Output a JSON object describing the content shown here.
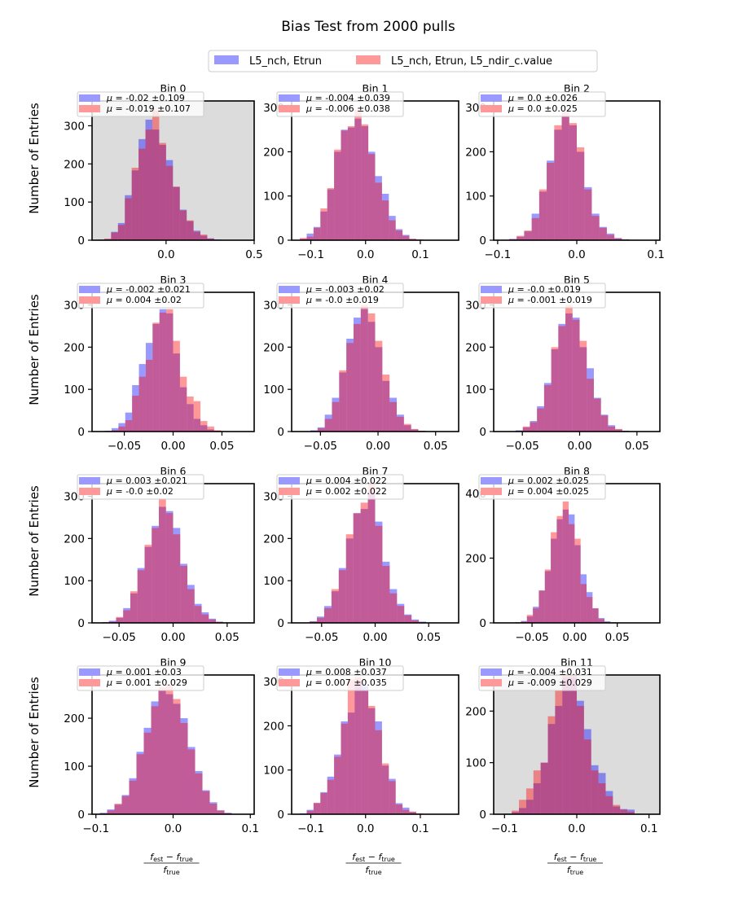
{
  "chart_data": {
    "type": "bar",
    "title": "Bias Test from 2000 pulls",
    "legend": {
      "placement": "top-center",
      "entries": [
        {
          "name": "L5_nch, Etrun",
          "color": "#6666ff"
        },
        {
          "name": "L5_nch, Etrun, L5_ndir_c.value",
          "color": "#ff6666"
        }
      ]
    },
    "ylabel": "Number of Entries",
    "xlabel": "(f_est - f_true) / f_true",
    "xlabel_parts": {
      "num_a": "f",
      "num_a_sub": "est",
      "minus": "−",
      "num_b": "f",
      "num_b_sub": "true",
      "den": "f",
      "den_sub": "true"
    },
    "panels": [
      {
        "title": "Bin 0",
        "shaded": true,
        "xlim": [
          -0.42,
          0.5
        ],
        "ylim": [
          0,
          365
        ],
        "xticks": [
          0.0,
          0.5
        ],
        "xticklabels": [
          "0.0",
          "0.5"
        ],
        "yticks": [
          0,
          100,
          200,
          300
        ],
        "edges": [
          -0.39,
          0.39
        ],
        "series": [
          {
            "name": "L5_nch, Etrun",
            "mu": "-0.02",
            "sigma": "0.109",
            "values": [
              1,
              3,
              22,
              45,
              118,
              183,
              265,
              316,
              290,
              250,
              210,
              140,
              80,
              50,
              25,
              12,
              5,
              2,
              0,
              0
            ]
          },
          {
            "name": "L5_nch, Etrun, L5_ndir_c.value",
            "mu": "-0.019",
            "sigma": "0.107",
            "values": [
              2,
              4,
              20,
              40,
              110,
              190,
              240,
              290,
              340,
              255,
              195,
              140,
              78,
              52,
              22,
              15,
              4,
              1,
              0,
              0
            ]
          }
        ]
      },
      {
        "title": "Bin 1",
        "shaded": false,
        "xlim": [
          -0.135,
          0.17
        ],
        "ylim": [
          0,
          315
        ],
        "xticks": [
          -0.1,
          0.0,
          0.1
        ],
        "xticklabels": [
          "−0.1",
          "0.0",
          "0.1"
        ],
        "yticks": [
          0,
          100,
          200,
          300
        ],
        "edges": [
          -0.12,
          0.13
        ],
        "series": [
          {
            "name": "L5_nch, Etrun",
            "mu": "-0.004",
            "sigma": "0.039",
            "values": [
              3,
              15,
              30,
              65,
              115,
              200,
              250,
              255,
              275,
              258,
              200,
              145,
              105,
              55,
              25,
              12,
              3,
              1,
              0,
              0
            ]
          },
          {
            "name": "L5_nch, Etrun, L5_ndir_c.value",
            "mu": "-0.006",
            "sigma": "0.038",
            "values": [
              5,
              8,
              28,
              72,
              118,
              205,
              248,
              258,
              295,
              262,
              195,
              130,
              90,
              45,
              22,
              10,
              3,
              2,
              0,
              0
            ]
          }
        ]
      },
      {
        "title": "Bin 2",
        "shaded": false,
        "xlim": [
          -0.105,
          0.105
        ],
        "ylim": [
          0,
          315
        ],
        "xticks": [
          -0.1,
          0.0,
          0.1
        ],
        "xticklabels": [
          "−0.1",
          "0.0",
          "0.1"
        ],
        "yticks": [
          0,
          100,
          200,
          300
        ],
        "edges": [
          -0.095,
          0.095
        ],
        "series": [
          {
            "name": "L5_nch, Etrun",
            "mu": "0.0",
            "sigma": "0.026",
            "values": [
              1,
              3,
              8,
              20,
              60,
              110,
              180,
              250,
              280,
              260,
              200,
              120,
              60,
              30,
              15,
              5,
              2,
              1,
              0,
              0
            ]
          },
          {
            "name": "L5_nch, Etrun, L5_ndir_c.value",
            "mu": "0.0",
            "sigma": "0.025",
            "values": [
              1,
              2,
              10,
              22,
              50,
              115,
              175,
              260,
              290,
              265,
              210,
              115,
              55,
              28,
              12,
              4,
              2,
              0,
              0,
              0
            ]
          }
        ]
      },
      {
        "title": "Bin 3",
        "shaded": false,
        "xlim": [
          -0.083,
          0.083
        ],
        "ylim": [
          0,
          330
        ],
        "xticks": [
          -0.05,
          0.0,
          0.05
        ],
        "xticklabels": [
          "−0.05",
          "0.00",
          "0.05"
        ],
        "yticks": [
          0,
          100,
          200,
          300
        ],
        "edges": [
          -0.07,
          0.07
        ],
        "series": [
          {
            "name": "L5_nch, Etrun",
            "mu": "-0.002",
            "sigma": "0.021",
            "values": [
              2,
              8,
              20,
              45,
              110,
              160,
              210,
              255,
              290,
              280,
              185,
              105,
              65,
              30,
              15,
              5,
              2,
              0,
              0,
              0
            ]
          },
          {
            "name": "L5_nch, Etrun, L5_ndir_c.value",
            "mu": "0.004",
            "sigma": "0.02",
            "values": [
              0,
              3,
              12,
              27,
              85,
              130,
              170,
              258,
              282,
              290,
              215,
              130,
              83,
              72,
              25,
              12,
              3,
              1,
              0,
              0
            ]
          }
        ]
      },
      {
        "title": "Bin 4",
        "shaded": false,
        "xlim": [
          -0.075,
          0.07
        ],
        "ylim": [
          0,
          330
        ],
        "xticks": [
          -0.05,
          0.0,
          0.05
        ],
        "xticklabels": [
          "−0.05",
          "0.00",
          "0.05"
        ],
        "yticks": [
          0,
          100,
          200,
          300
        ],
        "edges": [
          -0.065,
          0.06
        ],
        "series": [
          {
            "name": "L5_nch, Etrun",
            "mu": "-0.003",
            "sigma": "0.02",
            "values": [
              1,
              3,
              10,
              40,
              80,
              140,
              220,
              270,
              290,
              260,
              200,
              120,
              80,
              40,
              15,
              5,
              2,
              0,
              0,
              0
            ]
          },
          {
            "name": "L5_nch, Etrun, L5_ndir_c.value",
            "mu": "-0.0",
            "sigma": "0.019",
            "values": [
              1,
              2,
              8,
              30,
              70,
              145,
              210,
              255,
              300,
              280,
              215,
              135,
              70,
              35,
              18,
              6,
              2,
              0,
              0,
              0
            ]
          }
        ]
      },
      {
        "title": "Bin 5",
        "shaded": false,
        "xlim": [
          -0.075,
          0.07
        ],
        "ylim": [
          0,
          330
        ],
        "xticks": [
          -0.05,
          0.0,
          0.05
        ],
        "xticklabels": [
          "−0.05",
          "0.00",
          "0.05"
        ],
        "yticks": [
          0,
          100,
          200,
          300
        ],
        "edges": [
          -0.062,
          0.062
        ],
        "series": [
          {
            "name": "L5_nch, Etrun",
            "mu": "-0.0",
            "sigma": "0.019",
            "values": [
              1,
              3,
              10,
              25,
              60,
              115,
              195,
              255,
              280,
              270,
              200,
              150,
              80,
              40,
              15,
              5,
              2,
              0,
              0,
              0
            ]
          },
          {
            "name": "L5_nch, Etrun, L5_ndir_c.value",
            "mu": "-0.001",
            "sigma": "0.019",
            "values": [
              1,
              2,
              12,
              22,
              55,
              110,
              200,
              250,
              300,
              265,
              215,
              125,
              78,
              38,
              12,
              6,
              2,
              0,
              0,
              0
            ]
          }
        ]
      },
      {
        "title": "Bin 6",
        "shaded": false,
        "xlim": [
          -0.075,
          0.075
        ],
        "ylim": [
          0,
          330
        ],
        "xticks": [
          -0.05,
          0.0,
          0.05
        ],
        "xticklabels": [
          "−0.05",
          "0.00",
          "0.05"
        ],
        "yticks": [
          0,
          100,
          200,
          300
        ],
        "edges": [
          -0.066,
          0.066
        ],
        "series": [
          {
            "name": "L5_nch, Etrun",
            "mu": "0.003",
            "sigma": "0.021",
            "values": [
              2,
              5,
              12,
              35,
              70,
              130,
              180,
              230,
              275,
              265,
              225,
              140,
              90,
              45,
              25,
              10,
              3,
              1,
              0,
              0
            ]
          },
          {
            "name": "L5_nch, Etrun, L5_ndir_c.value",
            "mu": "-0.0",
            "sigma": "0.02",
            "values": [
              1,
              3,
              14,
              30,
              75,
              125,
              185,
              225,
              295,
              260,
              210,
              135,
              80,
              40,
              20,
              8,
              2,
              0,
              0,
              0
            ]
          }
        ]
      },
      {
        "title": "Bin 7",
        "shaded": false,
        "xlim": [
          -0.078,
          0.078
        ],
        "ylim": [
          0,
          330
        ],
        "xticks": [
          -0.05,
          0.0,
          0.05
        ],
        "xticklabels": [
          "−0.05",
          "0.00",
          "0.05"
        ],
        "yticks": [
          0,
          100,
          200,
          300
        ],
        "edges": [
          -0.068,
          0.068
        ],
        "series": [
          {
            "name": "L5_nch, Etrun",
            "mu": "0.004",
            "sigma": "0.022",
            "values": [
              1,
              4,
              15,
              40,
              75,
              130,
              200,
              260,
              270,
              310,
              240,
              145,
              80,
              45,
              20,
              8,
              3,
              1,
              0,
              0
            ]
          },
          {
            "name": "L5_nch, Etrun, L5_ndir_c.value",
            "mu": "0.002",
            "sigma": "0.022",
            "values": [
              1,
              3,
              12,
              35,
              80,
              125,
              210,
              260,
              285,
              335,
              230,
              135,
              70,
              40,
              18,
              6,
              2,
              0,
              0,
              0
            ]
          }
        ]
      },
      {
        "title": "Bin 8",
        "shaded": false,
        "xlim": [
          -0.095,
          0.1
        ],
        "ylim": [
          0,
          430
        ],
        "xticks": [
          -0.05,
          0.0,
          0.05
        ],
        "xticklabels": [
          "−0.05",
          "0.00",
          "0.05"
        ],
        "yticks": [
          0,
          200,
          400
        ],
        "edges": [
          -0.07,
          0.07
        ],
        "series": [
          {
            "name": "L5_nch, Etrun",
            "mu": "0.002",
            "sigma": "0.025",
            "values": [
              2,
              6,
              20,
              50,
              100,
              160,
              260,
              320,
              350,
              335,
              240,
              150,
              95,
              45,
              15,
              5,
              2,
              0,
              0,
              0
            ]
          },
          {
            "name": "L5_nch, Etrun, L5_ndir_c.value",
            "mu": "0.004",
            "sigma": "0.025",
            "values": [
              1,
              4,
              25,
              45,
              100,
              165,
              280,
              330,
              375,
              305,
              260,
              120,
              80,
              45,
              12,
              3,
              1,
              0,
              0,
              0
            ]
          }
        ]
      },
      {
        "title": "Bin 9",
        "shaded": false,
        "xlim": [
          -0.105,
          0.105
        ],
        "ylim": [
          0,
          290
        ],
        "xticks": [
          -0.1,
          0.0,
          0.1
        ],
        "xticklabels": [
          "−0.1",
          "0.0",
          "0.1"
        ],
        "yticks": [
          0,
          100,
          200
        ],
        "edges": [
          -0.095,
          0.095
        ],
        "series": [
          {
            "name": "L5_nch, Etrun",
            "mu": "0.001",
            "sigma": "0.03",
            "values": [
              3,
              10,
              20,
              40,
              75,
              130,
              180,
              235,
              258,
              250,
              230,
              200,
              140,
              90,
              50,
              25,
              8,
              3,
              0,
              0
            ]
          },
          {
            "name": "L5_nch, Etrun, L5_ndir_c.value",
            "mu": "0.001",
            "sigma": "0.029",
            "values": [
              2,
              8,
              22,
              38,
              70,
              125,
              170,
              225,
              265,
              270,
              240,
              190,
              135,
              85,
              48,
              22,
              8,
              2,
              0,
              0
            ]
          }
        ]
      },
      {
        "title": "Bin 10",
        "shaded": false,
        "xlim": [
          -0.135,
          0.17
        ],
        "ylim": [
          0,
          315
        ],
        "xticks": [
          -0.1,
          0.0,
          0.1
        ],
        "xticklabels": [
          "−0.1",
          "0.0",
          "0.1"
        ],
        "yticks": [
          0,
          100,
          200,
          300
        ],
        "edges": [
          -0.12,
          0.13
        ],
        "series": [
          {
            "name": "L5_nch, Etrun",
            "mu": "0.008",
            "sigma": "0.037",
            "values": [
              2,
              10,
              25,
              50,
              85,
              135,
              210,
              230,
              300,
              290,
              240,
              210,
              110,
              80,
              25,
              15,
              5,
              1,
              0,
              0
            ]
          },
          {
            "name": "L5_nch, Etrun, L5_ndir_c.value",
            "mu": "0.007",
            "sigma": "0.035",
            "values": [
              1,
              8,
              26,
              48,
              78,
              130,
              205,
              305,
              310,
              280,
              245,
              190,
              115,
              75,
              22,
              10,
              6,
              2,
              0,
              0
            ]
          }
        ]
      },
      {
        "title": "Bin 11",
        "shaded": true,
        "xlim": [
          -0.115,
          0.115
        ],
        "ylim": [
          0,
          270
        ],
        "xticks": [
          -0.1,
          0.0,
          0.1
        ],
        "xticklabels": [
          "−0.1",
          "0.0",
          "0.1"
        ],
        "yticks": [
          0,
          100,
          200
        ],
        "edges": [
          -0.1,
          0.1
        ],
        "series": [
          {
            "name": "L5_nch, Etrun",
            "mu": "-0.004",
            "sigma": "0.031",
            "values": [
              1,
              4,
              12,
              28,
              60,
              100,
              175,
              210,
              265,
              265,
              220,
              165,
              95,
              80,
              45,
              15,
              10,
              9,
              1,
              0
            ]
          },
          {
            "name": "L5_nch, Etrun, L5_ndir_c.value",
            "mu": "-0.009",
            "sigma": "0.029",
            "values": [
              1,
              7,
              28,
              50,
              85,
              100,
              190,
              240,
              270,
              270,
              210,
              145,
              85,
              60,
              35,
              18,
              9,
              5,
              0,
              0
            ]
          }
        ]
      }
    ]
  }
}
